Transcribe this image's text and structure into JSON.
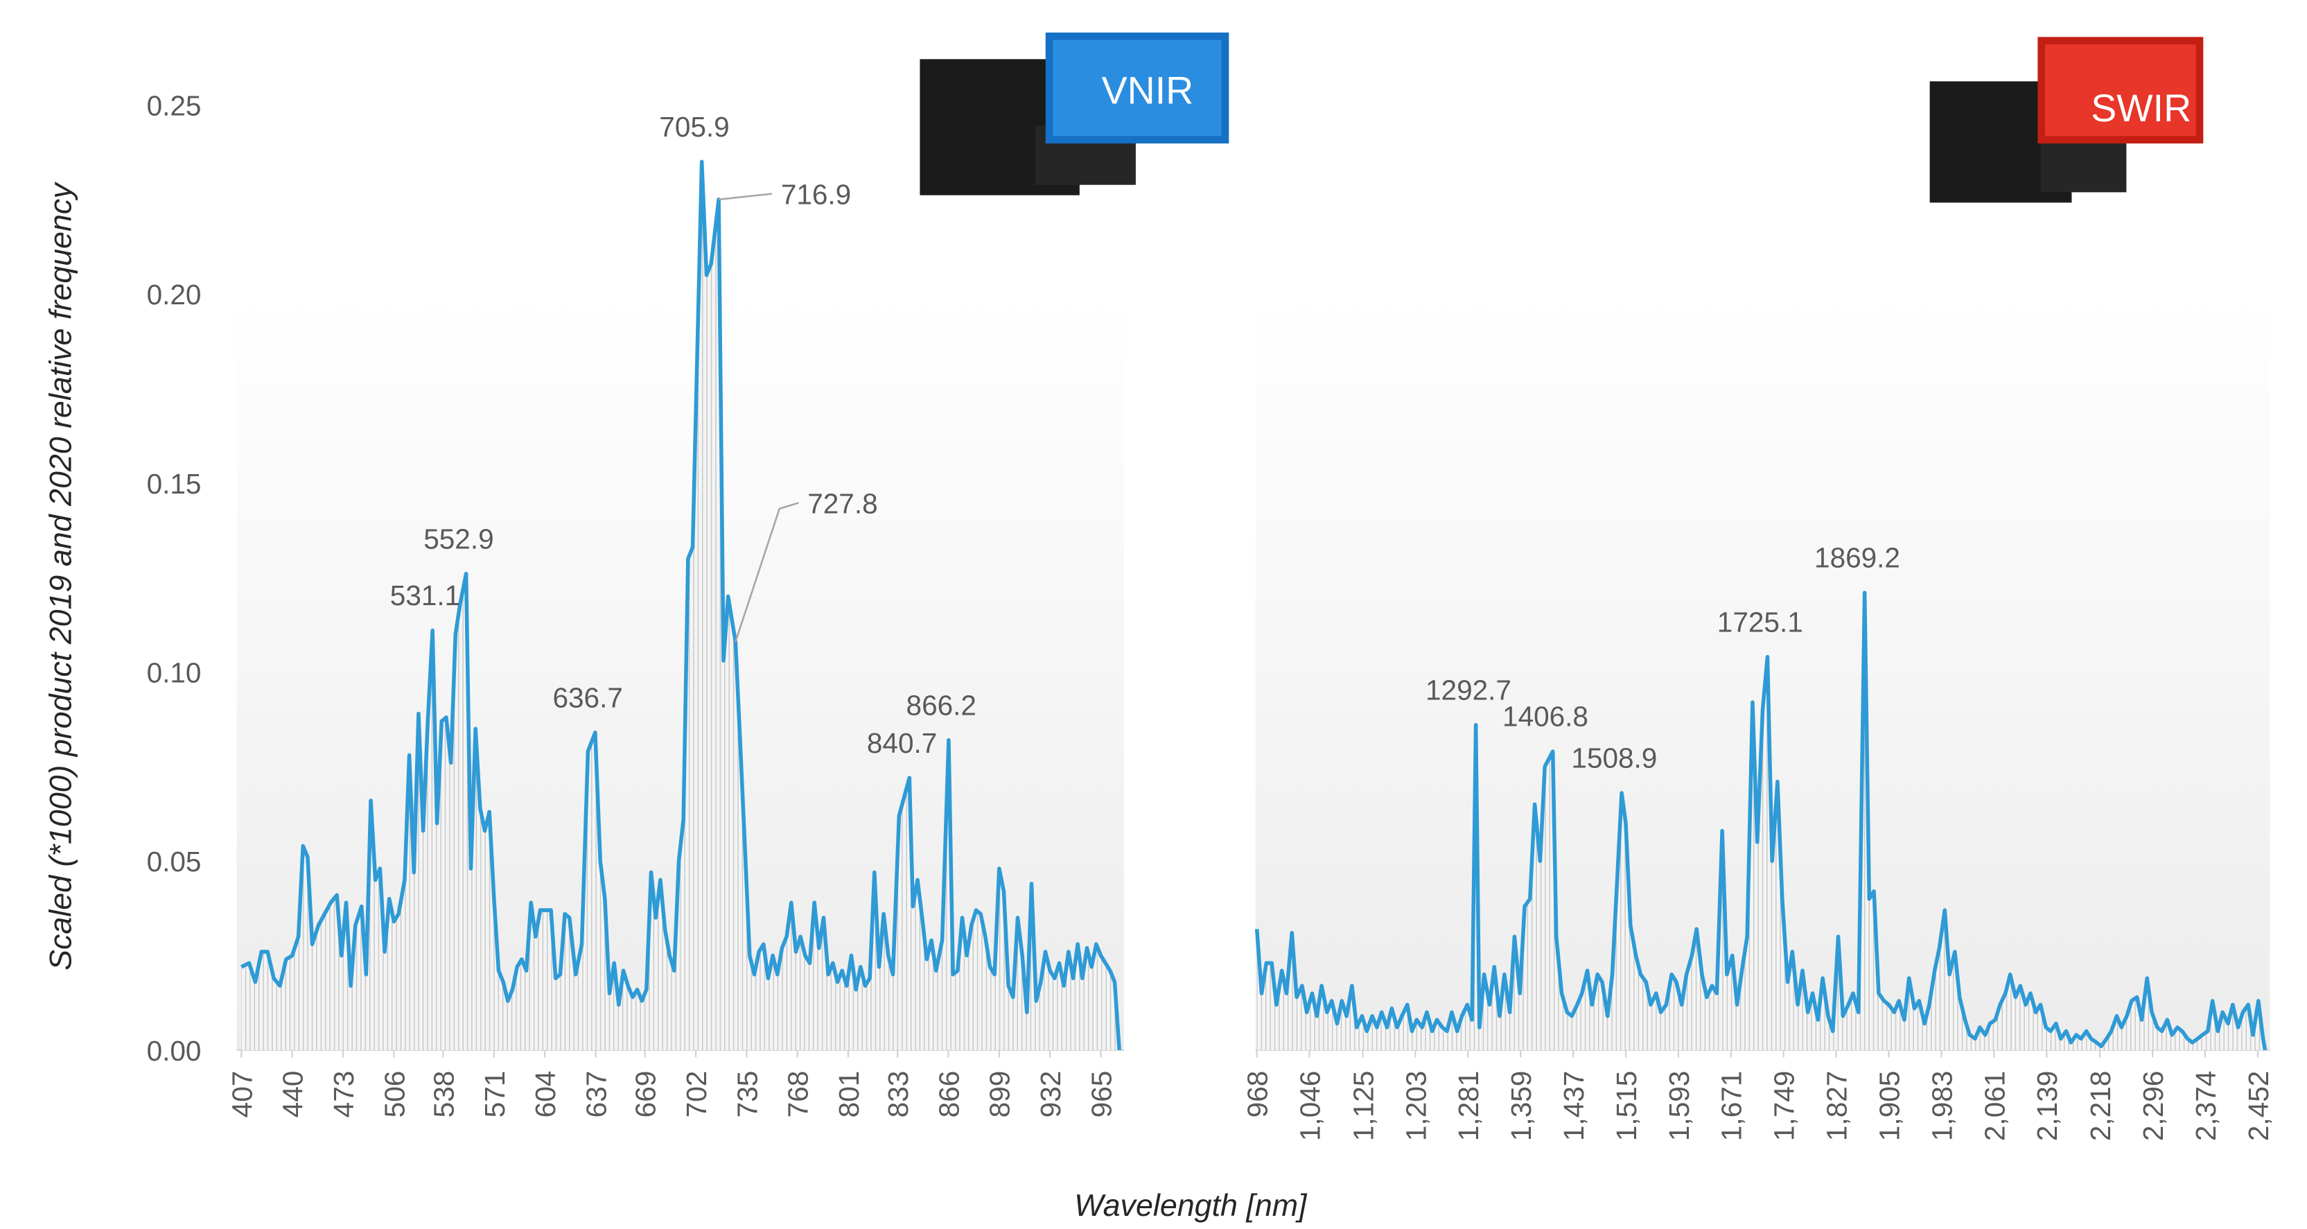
{
  "xlabel": "Wavelength [nm]",
  "chart_data": [
    {
      "type": "line",
      "badge": "VNIR",
      "color": "#2e9ad6",
      "ylabel": "Scaled (*1000) product 2019 and 2020 relative frequency",
      "xlim": [
        404,
        980
      ],
      "ylim": [
        0,
        0.25
      ],
      "yticks": [
        {
          "value": 0,
          "label": "0.00"
        },
        0.05,
        {
          "value": 0.1,
          "label": "0.10"
        },
        0.15,
        {
          "value": 0.2,
          "label": "0.20"
        },
        0.25
      ],
      "xticks": [
        407,
        440,
        473,
        506,
        538,
        571,
        604,
        637,
        669,
        702,
        735,
        768,
        801,
        833,
        866,
        899,
        932,
        965
      ],
      "x": [
        407,
        412,
        416,
        420,
        424,
        428,
        432,
        436,
        440,
        444,
        447,
        450,
        453,
        457,
        461,
        465,
        469,
        472,
        475,
        478,
        481,
        485,
        488,
        491,
        494,
        497,
        500,
        503,
        506,
        509,
        513,
        516,
        519,
        522,
        525,
        528,
        531.1,
        534,
        537,
        540,
        543,
        546,
        549,
        552.9,
        556,
        559,
        562,
        565,
        568,
        571,
        574,
        577,
        580,
        583,
        586,
        589,
        592,
        595,
        598,
        601,
        604,
        608,
        611,
        614,
        617,
        620,
        624,
        628,
        632,
        636.7,
        640,
        643,
        646,
        649,
        652,
        655,
        658,
        661,
        664,
        667,
        670,
        673,
        676,
        679,
        682,
        685,
        688,
        691,
        694,
        697,
        700,
        705.9,
        709,
        712,
        716.9,
        720,
        723,
        727.8,
        731,
        734,
        737,
        740,
        743,
        746,
        749,
        752,
        755,
        758,
        761,
        764,
        767,
        770,
        773,
        776,
        779,
        782,
        785,
        788,
        791,
        794,
        797,
        800,
        803,
        806,
        809,
        812,
        815,
        818,
        821,
        824,
        827,
        830,
        834,
        840.7,
        843,
        846,
        849,
        852,
        855,
        858,
        862,
        866.2,
        869,
        872,
        875,
        878,
        881,
        884,
        887,
        890,
        893,
        896,
        899,
        902,
        905,
        908,
        911,
        914,
        917,
        920,
        923,
        926,
        929,
        932,
        935,
        938,
        941,
        944,
        947,
        950,
        953,
        956,
        959,
        962,
        965,
        968,
        971,
        974,
        977
      ],
      "values": [
        0.022,
        0.023,
        0.018,
        0.026,
        0.026,
        0.019,
        0.017,
        0.024,
        0.025,
        0.03,
        0.054,
        0.051,
        0.028,
        0.033,
        0.036,
        0.039,
        0.041,
        0.025,
        0.039,
        0.017,
        0.033,
        0.038,
        0.02,
        0.066,
        0.045,
        0.048,
        0.026,
        0.04,
        0.034,
        0.036,
        0.045,
        0.078,
        0.047,
        0.089,
        0.058,
        0.087,
        0.111,
        0.06,
        0.087,
        0.088,
        0.076,
        0.11,
        0.118,
        0.126,
        0.048,
        0.085,
        0.064,
        0.058,
        0.063,
        0.04,
        0.021,
        0.018,
        0.013,
        0.016,
        0.022,
        0.024,
        0.021,
        0.039,
        0.03,
        0.037,
        0.037,
        0.037,
        0.019,
        0.02,
        0.036,
        0.035,
        0.02,
        0.028,
        0.079,
        0.084,
        0.05,
        0.04,
        0.015,
        0.023,
        0.012,
        0.021,
        0.017,
        0.014,
        0.016,
        0.013,
        0.016,
        0.047,
        0.035,
        0.045,
        0.032,
        0.025,
        0.021,
        0.05,
        0.061,
        0.13,
        0.133,
        0.235,
        0.205,
        0.208,
        0.225,
        0.103,
        0.12,
        0.108,
        0.08,
        0.053,
        0.025,
        0.02,
        0.026,
        0.028,
        0.019,
        0.025,
        0.02,
        0.027,
        0.03,
        0.039,
        0.026,
        0.03,
        0.025,
        0.023,
        0.039,
        0.027,
        0.035,
        0.02,
        0.023,
        0.018,
        0.021,
        0.017,
        0.025,
        0.016,
        0.022,
        0.017,
        0.019,
        0.047,
        0.022,
        0.036,
        0.025,
        0.02,
        0.062,
        0.072,
        0.038,
        0.045,
        0.035,
        0.024,
        0.029,
        0.021,
        0.029,
        0.082,
        0.02,
        0.021,
        0.035,
        0.025,
        0.033,
        0.037,
        0.036,
        0.03,
        0.022,
        0.02,
        0.048,
        0.042,
        0.017,
        0.014,
        0.035,
        0.025,
        0.01,
        0.044,
        0.013,
        0.018,
        0.026,
        0.021,
        0.019,
        0.023,
        0.017,
        0.026,
        0.019,
        0.028,
        0.019,
        0.027,
        0.022,
        0.028,
        0.025,
        0.023,
        0.021,
        0.018,
        0
      ],
      "annotations": [
        "705.9",
        "716.9",
        "552.9",
        "531.1",
        "636.7",
        "727.8",
        "866.2",
        "840.7"
      ]
    },
    {
      "type": "line",
      "badge": "SWIR",
      "color": "#2e9ad6",
      "xlim": [
        966,
        2470
      ],
      "ylim": [
        0,
        0.25
      ],
      "xticks": [
        968,
        {
          "value": 1046,
          "label": "1,046"
        },
        {
          "value": 1125,
          "label": "1,125"
        },
        {
          "value": 1203,
          "label": "1,203"
        },
        {
          "value": 1281,
          "label": "1,281"
        },
        {
          "value": 1359,
          "label": "1,359"
        },
        {
          "value": 1437,
          "label": "1,437"
        },
        {
          "value": 1515,
          "label": "1,515"
        },
        {
          "value": 1593,
          "label": "1,593"
        },
        {
          "value": 1671,
          "label": "1,671"
        },
        {
          "value": 1749,
          "label": "1,749"
        },
        {
          "value": 1827,
          "label": "1,827"
        },
        {
          "value": 1905,
          "label": "1,905"
        },
        {
          "value": 1983,
          "label": "1,983"
        },
        {
          "value": 2061,
          "label": "2,061"
        },
        {
          "value": 2139,
          "label": "2,139"
        },
        {
          "value": 2218,
          "label": "2,218"
        },
        {
          "value": 2296,
          "label": "2,296"
        },
        {
          "value": 2374,
          "label": "2,374"
        },
        {
          "value": 2452,
          "label": "2,452"
        }
      ],
      "x": [
        968,
        975,
        982,
        990,
        997,
        1005,
        1012,
        1020,
        1027,
        1035,
        1042,
        1050,
        1057,
        1064,
        1072,
        1079,
        1087,
        1094,
        1101,
        1109,
        1116,
        1124,
        1131,
        1139,
        1146,
        1153,
        1161,
        1168,
        1176,
        1183,
        1191,
        1198,
        1205,
        1213,
        1220,
        1228,
        1235,
        1243,
        1250,
        1257,
        1265,
        1272,
        1280,
        1287,
        1292.7,
        1298,
        1305,
        1313,
        1320,
        1328,
        1335,
        1343,
        1350,
        1358,
        1365,
        1373,
        1380,
        1388,
        1395,
        1406.8,
        1412,
        1420,
        1428,
        1435,
        1443,
        1450,
        1458,
        1465,
        1473,
        1480,
        1488,
        1495,
        1508.9,
        1515,
        1522,
        1530,
        1537,
        1545,
        1552,
        1560,
        1567,
        1575,
        1583,
        1590,
        1598,
        1605,
        1613,
        1620,
        1628,
        1635,
        1643,
        1650,
        1658,
        1665,
        1673,
        1680,
        1688,
        1695,
        1703,
        1710,
        1718,
        1725.1,
        1732,
        1740,
        1747,
        1755,
        1762,
        1770,
        1777,
        1785,
        1792,
        1800,
        1807,
        1815,
        1822,
        1830,
        1837,
        1845,
        1852,
        1860,
        1869.2,
        1876,
        1883,
        1890,
        1898,
        1905,
        1913,
        1920,
        1928,
        1935,
        1943,
        1950,
        1958,
        1965,
        1973,
        1980,
        1988,
        1995,
        2003,
        2010,
        2018,
        2025,
        2033,
        2040,
        2048,
        2055,
        2063,
        2070,
        2078,
        2085,
        2093,
        2100,
        2108,
        2115,
        2123,
        2130,
        2138,
        2145,
        2153,
        2160,
        2168,
        2175,
        2183,
        2190,
        2198,
        2205,
        2213,
        2220,
        2228,
        2235,
        2243,
        2250,
        2258,
        2265,
        2273,
        2280,
        2288,
        2295,
        2303,
        2310,
        2318,
        2325,
        2333,
        2340,
        2348,
        2355,
        2363,
        2370,
        2378,
        2385,
        2393,
        2400,
        2408,
        2415,
        2423,
        2430,
        2438,
        2445,
        2453,
        2460,
        2463
      ],
      "values": [
        0.032,
        0.015,
        0.023,
        0.023,
        0.012,
        0.021,
        0.015,
        0.031,
        0.014,
        0.017,
        0.01,
        0.015,
        0.009,
        0.017,
        0.01,
        0.013,
        0.007,
        0.013,
        0.009,
        0.017,
        0.006,
        0.009,
        0.005,
        0.009,
        0.006,
        0.01,
        0.006,
        0.011,
        0.006,
        0.009,
        0.012,
        0.005,
        0.008,
        0.006,
        0.01,
        0.005,
        0.008,
        0.006,
        0.005,
        0.01,
        0.005,
        0.009,
        0.012,
        0.008,
        0.086,
        0.006,
        0.02,
        0.012,
        0.022,
        0.009,
        0.02,
        0.01,
        0.03,
        0.015,
        0.038,
        0.04,
        0.065,
        0.05,
        0.075,
        0.079,
        0.03,
        0.015,
        0.01,
        0.009,
        0.012,
        0.015,
        0.021,
        0.012,
        0.02,
        0.018,
        0.009,
        0.02,
        0.068,
        0.06,
        0.033,
        0.025,
        0.02,
        0.018,
        0.012,
        0.015,
        0.01,
        0.012,
        0.02,
        0.018,
        0.012,
        0.02,
        0.025,
        0.032,
        0.02,
        0.014,
        0.017,
        0.015,
        0.058,
        0.02,
        0.025,
        0.012,
        0.022,
        0.03,
        0.092,
        0.055,
        0.09,
        0.104,
        0.05,
        0.071,
        0.04,
        0.018,
        0.026,
        0.012,
        0.021,
        0.01,
        0.015,
        0.008,
        0.019,
        0.009,
        0.005,
        0.03,
        0.009,
        0.012,
        0.015,
        0.01,
        0.121,
        0.04,
        0.042,
        0.015,
        0.013,
        0.012,
        0.01,
        0.013,
        0.008,
        0.019,
        0.011,
        0.013,
        0.007,
        0.012,
        0.021,
        0.027,
        0.037,
        0.02,
        0.026,
        0.014,
        0.008,
        0.004,
        0.003,
        0.006,
        0.004,
        0.007,
        0.008,
        0.012,
        0.015,
        0.02,
        0.014,
        0.017,
        0.012,
        0.015,
        0.01,
        0.012,
        0.006,
        0.005,
        0.007,
        0.003,
        0.005,
        0.002,
        0.004,
        0.003,
        0.005,
        0.003,
        0.002,
        0.001,
        0.003,
        0.005,
        0.009,
        0.006,
        0.009,
        0.013,
        0.014,
        0.008,
        0.019,
        0.01,
        0.006,
        0.005,
        0.008,
        0.004,
        0.006,
        0.005,
        0.003,
        0.002,
        0.003,
        0.004,
        0.005,
        0.013,
        0.005,
        0.01,
        0.007,
        0.012,
        0.006,
        0.01,
        0.012,
        0.004,
        0.013,
        0.003,
        0
      ],
      "annotations": [
        "1292.7",
        "1406.8",
        "1508.9",
        "1725.1",
        "1869.2"
      ]
    }
  ]
}
